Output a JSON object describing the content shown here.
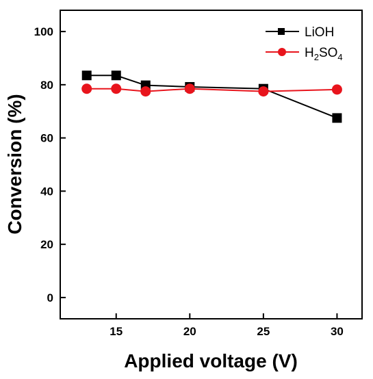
{
  "chart_data": {
    "type": "line",
    "xlabel": "Applied voltage (V)",
    "ylabel": "Conversion (%)",
    "xlim": [
      11.2,
      31.7
    ],
    "ylim": [
      -8,
      108
    ],
    "xticks": [
      15,
      20,
      25,
      30
    ],
    "yticks": [
      0,
      20,
      40,
      60,
      80,
      100
    ],
    "grid": false,
    "legend_position": "top-right",
    "series": [
      {
        "name": "LiOH",
        "color": "#000000",
        "marker": "square",
        "x": [
          13,
          15,
          17,
          20,
          25,
          30
        ],
        "y": [
          83.5,
          83.5,
          79.8,
          79.2,
          78.5,
          67.5
        ]
      },
      {
        "name": "H2SO4",
        "label_parts": [
          {
            "text": "H",
            "sub": false
          },
          {
            "text": "2",
            "sub": true
          },
          {
            "text": "SO",
            "sub": false
          },
          {
            "text": "4",
            "sub": true
          }
        ],
        "color": "#e8141c",
        "marker": "circle",
        "x": [
          13,
          15,
          17,
          20,
          25,
          30
        ],
        "y": [
          78.5,
          78.5,
          77.5,
          78.5,
          77.5,
          78.2
        ]
      }
    ]
  }
}
